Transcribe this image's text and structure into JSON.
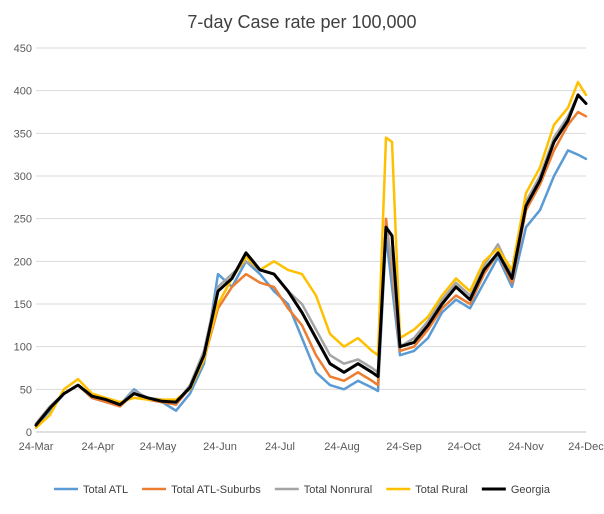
{
  "chart_data": {
    "type": "line",
    "title": "7-day Case rate per 100,000",
    "xlabel": "",
    "ylabel": "",
    "ylim": [
      0,
      450
    ],
    "yticks": [
      0,
      50,
      100,
      150,
      200,
      250,
      300,
      350,
      400,
      450
    ],
    "xticks": [
      "24-Mar",
      "24-Apr",
      "24-May",
      "24-Jun",
      "24-Jul",
      "24-Aug",
      "24-Sep",
      "24-Oct",
      "24-Nov",
      "24-Dec"
    ],
    "x": [
      "24-Mar",
      "31-Mar",
      "7-Apr",
      "14-Apr",
      "21-Apr",
      "28-Apr",
      "5-May",
      "12-May",
      "19-May",
      "26-May",
      "2-Jun",
      "9-Jun",
      "16-Jun",
      "23-Jun",
      "30-Jun",
      "7-Jul",
      "14-Jul",
      "21-Jul",
      "28-Jul",
      "4-Aug",
      "11-Aug",
      "18-Aug",
      "25-Aug",
      "1-Sep",
      "8-Sep",
      "11-Sep",
      "15-Sep",
      "18-Sep",
      "22-Sep",
      "29-Sep",
      "6-Oct",
      "13-Oct",
      "20-Oct",
      "27-Oct",
      "3-Nov",
      "10-Nov",
      "17-Nov",
      "24-Nov",
      "1-Dec",
      "8-Dec",
      "15-Dec",
      "20-Dec",
      "24-Dec"
    ],
    "grid": true,
    "legend_position": "bottom",
    "series": [
      {
        "name": "Total ATL",
        "color": "#5b9bd5",
        "values": [
          8,
          25,
          45,
          55,
          40,
          35,
          32,
          50,
          38,
          35,
          25,
          45,
          80,
          185,
          170,
          200,
          185,
          165,
          150,
          110,
          70,
          55,
          50,
          60,
          52,
          48,
          230,
          170,
          90,
          95,
          110,
          140,
          155,
          145,
          175,
          205,
          170,
          240,
          260,
          300,
          330,
          325,
          320
        ]
      },
      {
        "name": "Total ATL-Suburbs",
        "color": "#ed7d31",
        "values": [
          10,
          30,
          45,
          55,
          40,
          35,
          30,
          45,
          38,
          35,
          32,
          52,
          85,
          145,
          170,
          185,
          175,
          170,
          145,
          125,
          90,
          65,
          60,
          70,
          60,
          55,
          250,
          190,
          95,
          100,
          120,
          145,
          160,
          150,
          185,
          210,
          175,
          260,
          290,
          330,
          360,
          375,
          370
        ]
      },
      {
        "name": "Total Nonrural",
        "color": "#a5a5a5",
        "values": [
          10,
          30,
          45,
          55,
          42,
          38,
          32,
          48,
          40,
          38,
          34,
          55,
          95,
          170,
          185,
          200,
          190,
          185,
          165,
          150,
          120,
          90,
          80,
          85,
          75,
          70,
          240,
          200,
          100,
          110,
          130,
          155,
          175,
          160,
          195,
          220,
          185,
          270,
          300,
          345,
          370,
          395,
          385
        ]
      },
      {
        "name": "Total Rural",
        "color": "#ffc000",
        "values": [
          5,
          20,
          50,
          62,
          45,
          40,
          35,
          40,
          38,
          38,
          38,
          50,
          85,
          150,
          180,
          205,
          190,
          200,
          190,
          185,
          160,
          115,
          100,
          110,
          95,
          90,
          345,
          340,
          110,
          120,
          135,
          160,
          180,
          165,
          200,
          215,
          190,
          280,
          310,
          360,
          380,
          410,
          395
        ]
      },
      {
        "name": "Georgia",
        "color": "#000000",
        "values": [
          8,
          28,
          45,
          55,
          42,
          38,
          32,
          45,
          40,
          36,
          35,
          52,
          90,
          165,
          180,
          210,
          190,
          185,
          165,
          140,
          110,
          80,
          70,
          80,
          70,
          65,
          240,
          230,
          100,
          105,
          125,
          150,
          170,
          155,
          190,
          210,
          180,
          265,
          295,
          340,
          365,
          395,
          385
        ]
      }
    ]
  }
}
